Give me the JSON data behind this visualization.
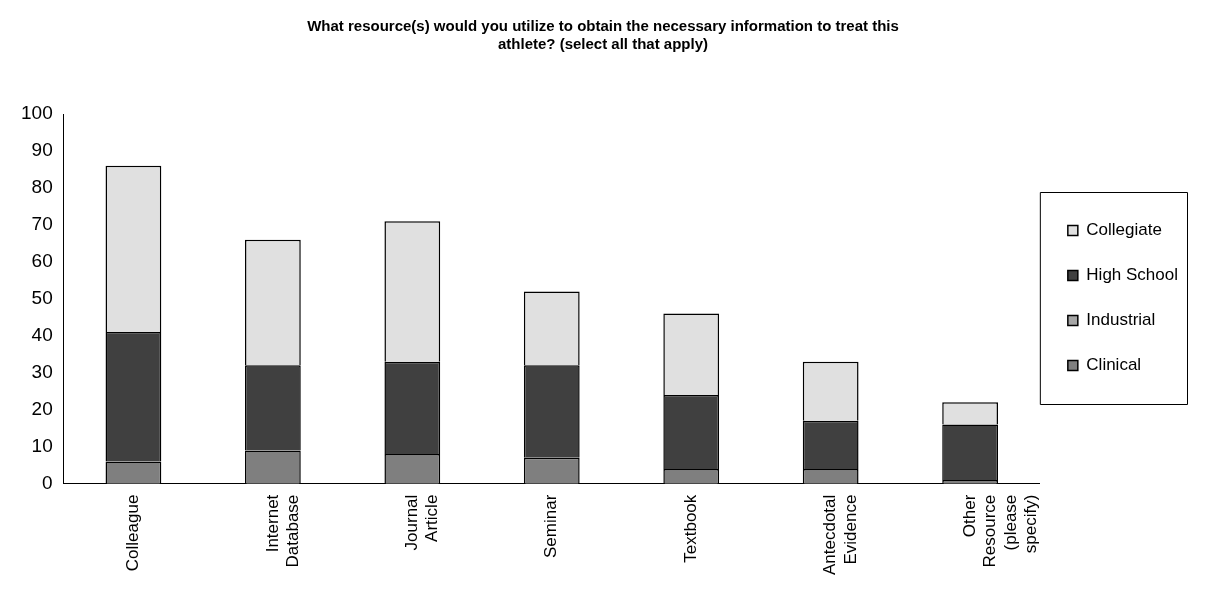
{
  "chart_data": {
    "type": "bar",
    "stacked": true,
    "title": "What resource(s) would you utilize to obtain the necessary information to treat this athlete? (select all that apply)",
    "categories": [
      "Colleague",
      "Internet Database",
      "Journal Article",
      "Seminar",
      "Textbook",
      "Antecdotal Evidence",
      "Other Resource (please specify)"
    ],
    "series": [
      {
        "name": "Clinical",
        "color": "#7f7f7f",
        "values": [
          6,
          9,
          8,
          7,
          4,
          4,
          1
        ]
      },
      {
        "name": "Industrial",
        "color": "#a6a6a6",
        "values": [
          0,
          0,
          0,
          0,
          0,
          0,
          0
        ]
      },
      {
        "name": "High School",
        "color": "#404040",
        "values": [
          35,
          23,
          25,
          25,
          20,
          13,
          15
        ]
      },
      {
        "name": "Collegiate",
        "color": "#e0e0e0",
        "values": [
          45,
          34,
          38,
          20,
          22,
          16,
          6
        ]
      }
    ],
    "ylim": [
      0,
      100
    ],
    "yticks": [
      0,
      10,
      20,
      30,
      40,
      50,
      60,
      70,
      80,
      90,
      100
    ],
    "grid": false,
    "legend": "right"
  }
}
